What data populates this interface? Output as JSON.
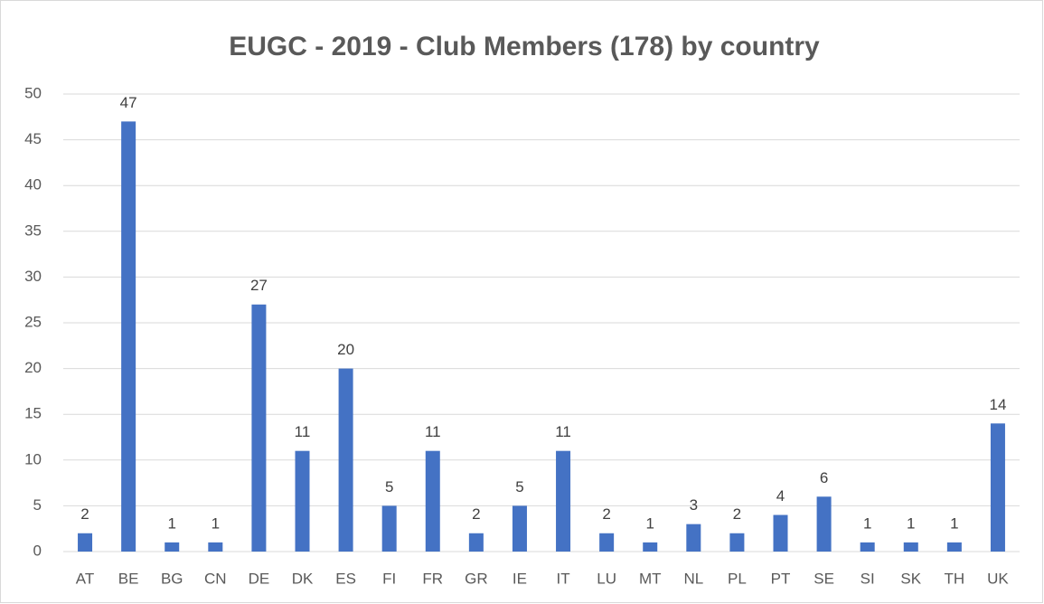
{
  "chart_data": {
    "type": "bar",
    "title": "EUGC - 2019 - Club Members (178) by country",
    "categories": [
      "AT",
      "BE",
      "BG",
      "CN",
      "DE",
      "DK",
      "ES",
      "FI",
      "FR",
      "GR",
      "IE",
      "IT",
      "LU",
      "MT",
      "NL",
      "PL",
      "PT",
      "SE",
      "SI",
      "SK",
      "TH",
      "UK"
    ],
    "values": [
      2,
      47,
      1,
      1,
      27,
      11,
      20,
      5,
      11,
      2,
      5,
      11,
      2,
      1,
      3,
      2,
      4,
      6,
      1,
      1,
      1,
      14
    ],
    "color": "#4472c4",
    "ylim": [
      0,
      50
    ],
    "yticks": [
      0,
      5,
      10,
      15,
      20,
      25,
      30,
      35,
      40,
      45,
      50
    ],
    "grid": true
  }
}
